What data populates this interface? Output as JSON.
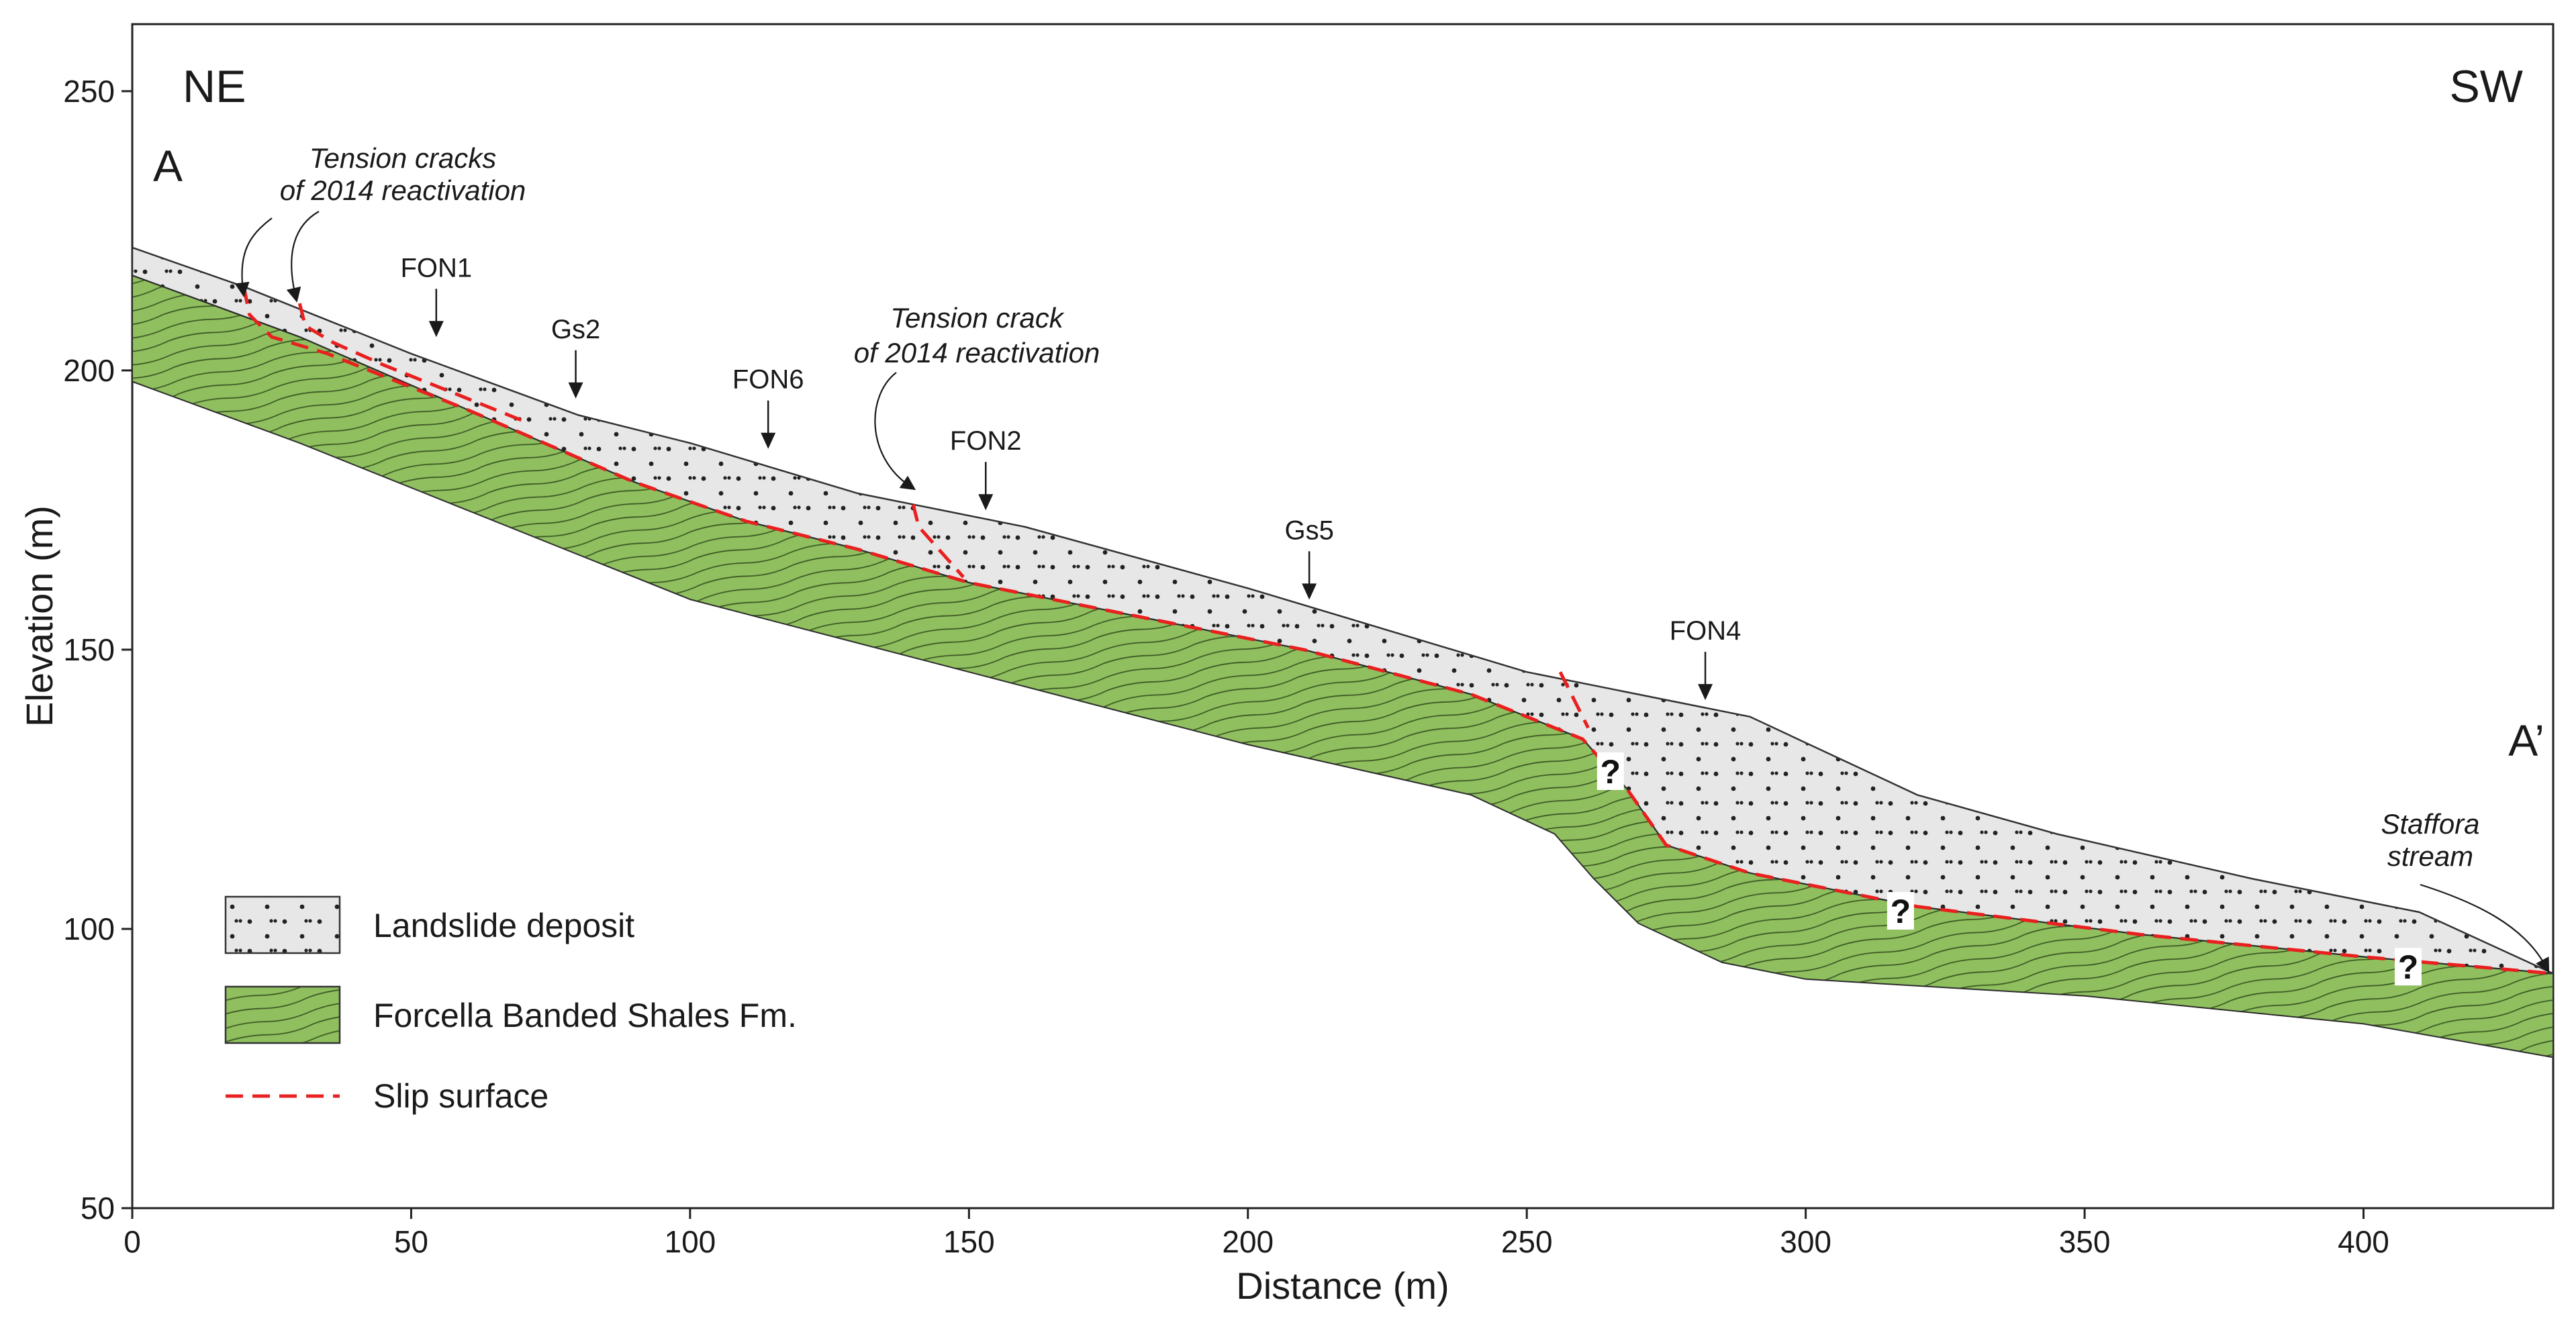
{
  "figure": {
    "type": "geological cross-section",
    "orientation": {
      "left": "NE",
      "right": "SW"
    },
    "section_labels": {
      "start": "A",
      "end": "A’"
    },
    "colors": {
      "landslide_fill": "#e7e7e7",
      "bedrock_fill": "#8fbf5e",
      "slip_surface": "#e8201f",
      "outline": "#333333"
    }
  },
  "chart_data": {
    "type": "cross-section",
    "xlabel": "Distance (m)",
    "ylabel": "Elevation (m)",
    "xlim": [
      0,
      434
    ],
    "ylim": [
      50,
      262
    ],
    "xticks": [
      0,
      50,
      100,
      150,
      200,
      250,
      300,
      350,
      400
    ],
    "yticks": [
      50,
      100,
      150,
      200,
      250
    ],
    "ground_surface": [
      [
        0,
        222
      ],
      [
        20,
        215
      ],
      [
        50,
        203
      ],
      [
        80,
        192
      ],
      [
        100,
        187
      ],
      [
        130,
        178
      ],
      [
        160,
        172
      ],
      [
        200,
        161
      ],
      [
        250,
        146
      ],
      [
        265,
        143
      ],
      [
        290,
        138
      ],
      [
        320,
        124
      ],
      [
        345,
        117
      ],
      [
        380,
        109
      ],
      [
        410,
        103
      ],
      [
        434,
        92
      ]
    ],
    "bedrock_top": [
      [
        0,
        217
      ],
      [
        30,
        206
      ],
      [
        60,
        193
      ],
      [
        90,
        180
      ],
      [
        110,
        173
      ],
      [
        130,
        168
      ],
      [
        150,
        162
      ],
      [
        180,
        156
      ],
      [
        210,
        150
      ],
      [
        240,
        142
      ],
      [
        260,
        134
      ],
      [
        268,
        125
      ],
      [
        275,
        115
      ],
      [
        290,
        110
      ],
      [
        320,
        104
      ],
      [
        360,
        99
      ],
      [
        400,
        95
      ],
      [
        434,
        92
      ]
    ],
    "bedrock_base": [
      [
        0,
        198
      ],
      [
        30,
        187
      ],
      [
        60,
        175
      ],
      [
        100,
        159
      ],
      [
        150,
        146
      ],
      [
        200,
        133
      ],
      [
        240,
        124
      ],
      [
        255,
        117
      ],
      [
        262,
        109
      ],
      [
        270,
        101
      ],
      [
        285,
        94
      ],
      [
        300,
        91
      ],
      [
        350,
        88
      ],
      [
        400,
        83
      ],
      [
        434,
        77
      ]
    ],
    "slip_surfaces": [
      [
        [
          20,
          215
        ],
        [
          21,
          210
        ],
        [
          25,
          206
        ],
        [
          35,
          203
        ],
        [
          60,
          193
        ],
        [
          90,
          180
        ],
        [
          110,
          173
        ],
        [
          130,
          168
        ],
        [
          150,
          162
        ],
        [
          180,
          156
        ],
        [
          210,
          150
        ],
        [
          240,
          142
        ],
        [
          260,
          134
        ],
        [
          268,
          125
        ],
        [
          275,
          115
        ],
        [
          290,
          110
        ],
        [
          320,
          104
        ],
        [
          360,
          99
        ],
        [
          400,
          95
        ],
        [
          434,
          92
        ]
      ],
      [
        [
          30,
          212
        ],
        [
          31,
          208
        ],
        [
          36,
          205
        ],
        [
          45,
          201
        ],
        [
          60,
          195
        ],
        [
          70,
          191
        ]
      ],
      [
        [
          140,
          176
        ],
        [
          141,
          172
        ],
        [
          149,
          163
        ]
      ],
      [
        [
          256,
          146
        ],
        [
          258,
          142
        ],
        [
          261,
          136
        ]
      ]
    ],
    "wells": [
      {
        "name": "FON1",
        "x": 54.5,
        "y": 205
      },
      {
        "name": "Gs2",
        "x": 79.5,
        "y": 194
      },
      {
        "name": "FON6",
        "x": 114,
        "y": 185
      },
      {
        "name": "FON2",
        "x": 153,
        "y": 174
      },
      {
        "name": "Gs5",
        "x": 211,
        "y": 158
      },
      {
        "name": "FON4",
        "x": 282,
        "y": 140
      }
    ],
    "uncertain_markers": [
      {
        "label": "?",
        "x": 265,
        "y": 128
      },
      {
        "label": "?",
        "x": 317,
        "y": 103
      },
      {
        "label": "?",
        "x": 408,
        "y": 93
      }
    ],
    "annotations": [
      {
        "id": "tension_cracks_1",
        "lines": [
          "Tension cracks",
          "of 2014 reactivation"
        ]
      },
      {
        "id": "tension_crack_2",
        "lines": [
          "Tension crack",
          "of 2014 reactivation"
        ]
      },
      {
        "id": "stream",
        "lines": [
          "Staffora",
          "stream"
        ]
      }
    ],
    "legend": [
      {
        "key": "landslide",
        "label": "Landslide deposit"
      },
      {
        "key": "bedrock",
        "label": "Forcella Banded Shales Fm."
      },
      {
        "key": "slip",
        "label": "Slip surface"
      }
    ]
  }
}
